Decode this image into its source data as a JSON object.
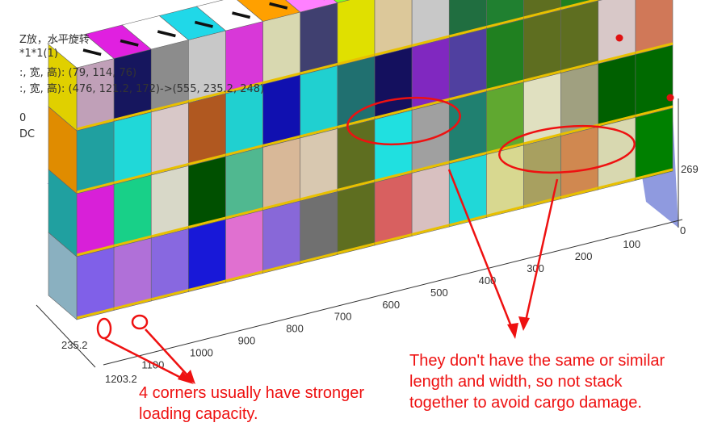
{
  "info_lines": [
    "Z放，水平旋转",
    "*1*1(1)",
    ":, 宽, 高): (79, 114, 76)",
    ":, 宽, 高): (476, 121.2, 172)->(555, 235.2, 248)",
    "0",
    "DC"
  ],
  "axes": {
    "length_ticks": [
      "100",
      "200",
      "300",
      "400",
      "500",
      "600",
      "700",
      "800",
      "900",
      "1000",
      "1100"
    ],
    "length_end": "1203.2",
    "width_end": "235.2",
    "height_label": "269",
    "zero": "0"
  },
  "annotations": {
    "left": [
      "4 corners usually have stronger",
      "loading capacity."
    ],
    "right": [
      "They don't have the same or similar",
      "length and width, so not stack",
      "together to avoid cargo damage."
    ]
  },
  "colors": {
    "container": "#5a6bd0",
    "annotation": "#ee1111",
    "pallet_stripe": "#e8c000"
  }
}
